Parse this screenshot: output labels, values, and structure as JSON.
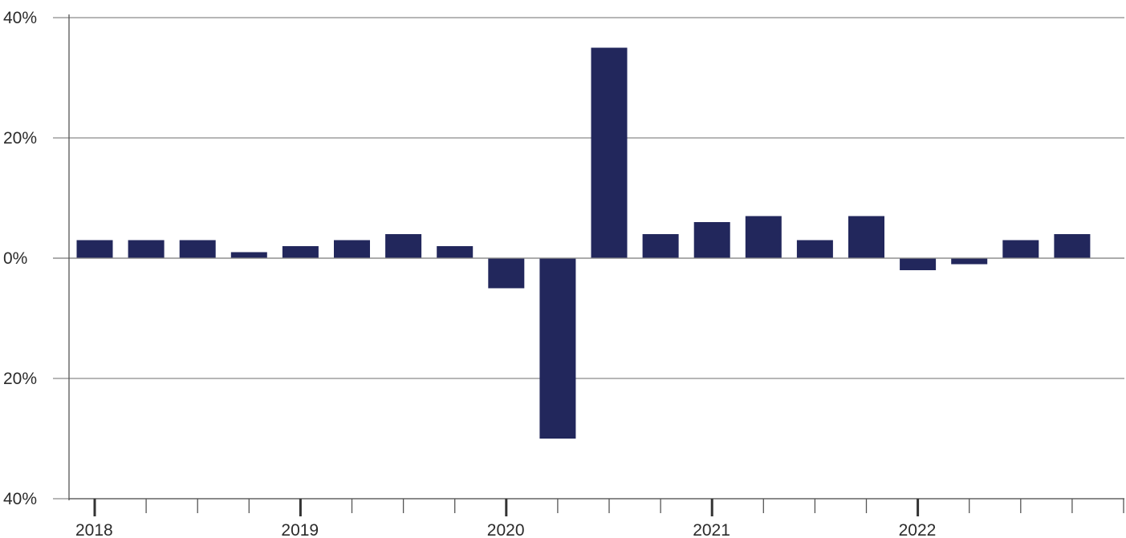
{
  "chart_data": {
    "type": "bar",
    "title": "",
    "xlabel": "",
    "ylabel": "",
    "ylim": [
      -40,
      40
    ],
    "yticks": [
      40,
      20,
      0,
      -20,
      -40
    ],
    "ytick_labels": [
      "40%",
      "20%",
      "0%",
      "20%",
      "40%"
    ],
    "grid": true,
    "bar_color": "#22275c",
    "x_period_labels": [
      "2018",
      "2019",
      "2020",
      "2021",
      "2022"
    ],
    "categories": [
      "Q1 2018",
      "Q2 2018",
      "Q3 2018",
      "Q4 2018",
      "Q1 2019",
      "Q2 2019",
      "Q3 2019",
      "Q4 2019",
      "Q1 2020",
      "Q2 2020",
      "Q3 2020",
      "Q4 2020",
      "Q1 2021",
      "Q2 2021",
      "Q3 2021",
      "Q4 2021",
      "Q1 2022",
      "Q2 2022",
      "Q3 2022",
      "Q4 2022"
    ],
    "values": [
      3,
      3,
      3,
      1,
      2,
      3,
      4,
      2,
      -5,
      -30,
      35,
      4,
      6,
      7,
      3,
      7,
      -2,
      -1,
      3,
      4
    ]
  }
}
